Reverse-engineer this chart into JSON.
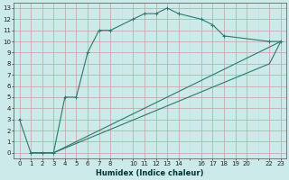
{
  "xlabel": "Humidex (Indice chaleur)",
  "bg_color": "#cdeaea",
  "line_color": "#2a7a6a",
  "xlim": [
    -0.5,
    23.5
  ],
  "ylim": [
    -0.5,
    13.5
  ],
  "xticks": [
    0,
    1,
    2,
    3,
    4,
    5,
    6,
    7,
    8,
    10,
    11,
    12,
    13,
    14,
    16,
    17,
    18,
    19,
    20,
    22,
    23
  ],
  "yticks": [
    0,
    1,
    2,
    3,
    4,
    5,
    6,
    7,
    8,
    9,
    10,
    11,
    12,
    13
  ],
  "curve1_x": [
    0,
    1,
    2,
    3,
    4,
    5,
    6,
    7,
    8,
    10,
    11,
    12,
    13,
    14,
    16,
    17,
    18,
    22,
    23
  ],
  "curve1_y": [
    3,
    0,
    0,
    0,
    5,
    5,
    9,
    11,
    11,
    12,
    12.5,
    12.5,
    13,
    12.5,
    12,
    11.5,
    10.5,
    10,
    10
  ],
  "curve2_x": [
    1,
    3,
    22,
    23
  ],
  "curve2_y": [
    0,
    0,
    9.5,
    10
  ],
  "curve3_x": [
    1,
    3,
    22,
    23
  ],
  "curve3_y": [
    0,
    0,
    8.0,
    10
  ],
  "grid_major_color": "#bbbbbb",
  "grid_minor_color": "#ccdddd"
}
